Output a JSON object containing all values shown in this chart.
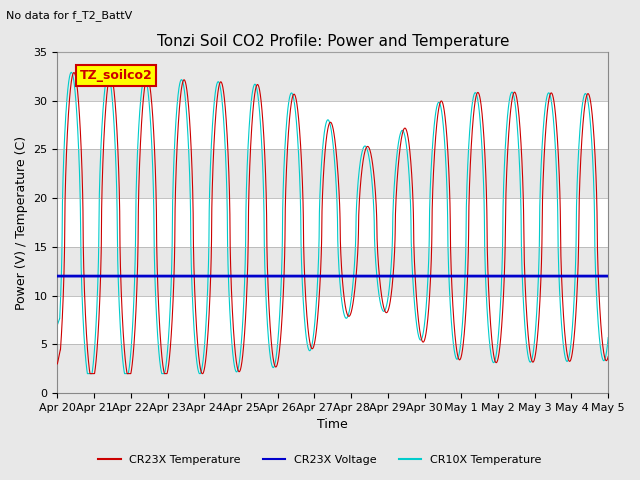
{
  "title": "Tonzi Soil CO2 Profile: Power and Temperature",
  "subtitle": "No data for f_T2_BattV",
  "ylabel": "Power (V) / Temperature (C)",
  "xlabel": "Time",
  "ylim": [
    0,
    35
  ],
  "yticks": [
    0,
    5,
    10,
    15,
    20,
    25,
    30,
    35
  ],
  "xtick_labels": [
    "Apr 20",
    "Apr 21",
    "Apr 22",
    "Apr 23",
    "Apr 24",
    "Apr 25",
    "Apr 26",
    "Apr 27",
    "Apr 28",
    "Apr 29",
    "Apr 30",
    "May 1",
    "May 2",
    "May 3",
    "May 4",
    "May 5"
  ],
  "cr23x_temp_color": "#cc0000",
  "cr10x_temp_color": "#00cccc",
  "cr23x_volt_color": "#0000cc",
  "cr23x_volt_value": 12.0,
  "legend_box_label": "TZ_soilco2",
  "legend_box_color": "#ffff00",
  "legend_box_text_color": "#cc0000",
  "legend_entries": [
    "CR23X Temperature",
    "CR23X Voltage",
    "CR10X Temperature"
  ],
  "background_color": "#e8e8e8",
  "plot_bg_color": "#ffffff",
  "grid_color": "#cccccc",
  "title_fontsize": 11,
  "label_fontsize": 9,
  "tick_fontsize": 8
}
